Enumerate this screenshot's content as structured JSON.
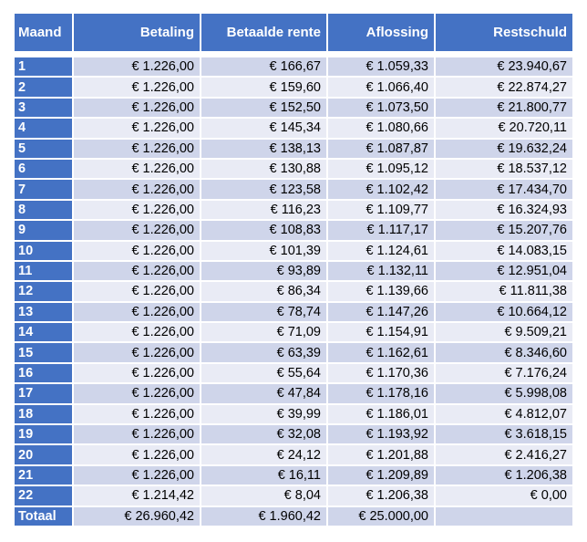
{
  "table": {
    "headers": [
      "Maand",
      "Betaling",
      "Betaalde rente",
      "Aflossing",
      "Restschuld"
    ],
    "rows": [
      [
        "1",
        "€ 1.226,00",
        "€ 166,67",
        "€ 1.059,33",
        "€ 23.940,67"
      ],
      [
        "2",
        "€ 1.226,00",
        "€ 159,60",
        "€ 1.066,40",
        "€ 22.874,27"
      ],
      [
        "3",
        "€ 1.226,00",
        "€ 152,50",
        "€ 1.073,50",
        "€ 21.800,77"
      ],
      [
        "4",
        "€ 1.226,00",
        "€ 145,34",
        "€ 1.080,66",
        "€ 20.720,11"
      ],
      [
        "5",
        "€ 1.226,00",
        "€ 138,13",
        "€ 1.087,87",
        "€ 19.632,24"
      ],
      [
        "6",
        "€ 1.226,00",
        "€ 130,88",
        "€ 1.095,12",
        "€ 18.537,12"
      ],
      [
        "7",
        "€ 1.226,00",
        "€ 123,58",
        "€ 1.102,42",
        "€ 17.434,70"
      ],
      [
        "8",
        "€ 1.226,00",
        "€ 116,23",
        "€ 1.109,77",
        "€ 16.324,93"
      ],
      [
        "9",
        "€ 1.226,00",
        "€ 108,83",
        "€ 1.117,17",
        "€ 15.207,76"
      ],
      [
        "10",
        "€ 1.226,00",
        "€ 101,39",
        "€ 1.124,61",
        "€ 14.083,15"
      ],
      [
        "11",
        "€ 1.226,00",
        "€ 93,89",
        "€ 1.132,11",
        "€ 12.951,04"
      ],
      [
        "12",
        "€ 1.226,00",
        "€ 86,34",
        "€ 1.139,66",
        "€ 11.811,38"
      ],
      [
        "13",
        "€ 1.226,00",
        "€ 78,74",
        "€ 1.147,26",
        "€ 10.664,12"
      ],
      [
        "14",
        "€ 1.226,00",
        "€ 71,09",
        "€ 1.154,91",
        "€ 9.509,21"
      ],
      [
        "15",
        "€ 1.226,00",
        "€ 63,39",
        "€ 1.162,61",
        "€ 8.346,60"
      ],
      [
        "16",
        "€ 1.226,00",
        "€ 55,64",
        "€ 1.170,36",
        "€ 7.176,24"
      ],
      [
        "17",
        "€ 1.226,00",
        "€ 47,84",
        "€ 1.178,16",
        "€ 5.998,08"
      ],
      [
        "18",
        "€ 1.226,00",
        "€ 39,99",
        "€ 1.186,01",
        "€ 4.812,07"
      ],
      [
        "19",
        "€ 1.226,00",
        "€ 32,08",
        "€ 1.193,92",
        "€ 3.618,15"
      ],
      [
        "20",
        "€ 1.226,00",
        "€ 24,12",
        "€ 1.201,88",
        "€ 2.416,27"
      ],
      [
        "21",
        "€ 1.226,00",
        "€ 16,11",
        "€ 1.209,89",
        "€ 1.206,38"
      ],
      [
        "22",
        "€ 1.214,42",
        "€ 8,04",
        "€ 1.206,38",
        "€ 0,00"
      ]
    ],
    "total": [
      "Totaal",
      "€ 26.960,42",
      "€ 1.960,42",
      "€ 25.000,00",
      ""
    ]
  },
  "colors": {
    "header_bg": "#4472c4",
    "header_text": "#ffffff",
    "band_dark": "#cfd5ea",
    "band_light": "#e9ebf5"
  }
}
